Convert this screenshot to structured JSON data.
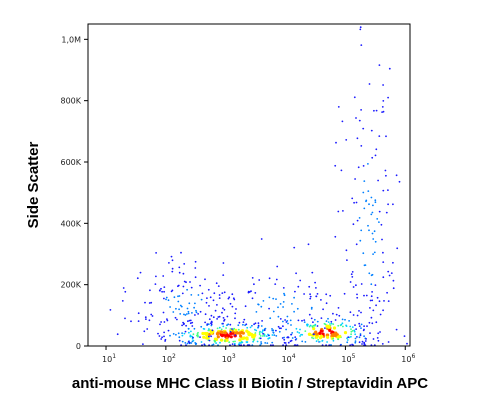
{
  "chart_data": {
    "type": "scatter",
    "title": "",
    "xlabel": "anti-mouse MHC Class II Biotin / Streptavidin APC",
    "ylabel": "Side Scatter",
    "xscale": "log",
    "xlim": [
      5,
      1200000
    ],
    "ylim": [
      0,
      1050000
    ],
    "x_ticks": [
      {
        "base": "10",
        "exp": "1",
        "value": 10
      },
      {
        "base": "10",
        "exp": "2",
        "value": 100
      },
      {
        "base": "10",
        "exp": "3",
        "value": 1000
      },
      {
        "base": "10",
        "exp": "4",
        "value": 10000
      },
      {
        "base": "10",
        "exp": "5",
        "value": 100000
      },
      {
        "base": "10",
        "exp": "6",
        "value": 1000000
      }
    ],
    "y_ticks": [
      {
        "label": "0",
        "value": 0
      },
      {
        "label": "200K",
        "value": 200000
      },
      {
        "label": "400K",
        "value": 400000
      },
      {
        "label": "600K",
        "value": 600000
      },
      {
        "label": "800K",
        "value": 800000
      },
      {
        "label": "1,0M",
        "value": 1000000
      }
    ],
    "grid": false,
    "legend": "none",
    "colormap": [
      "#1a1aff",
      "#0080ff",
      "#00d0ff",
      "#40ff80",
      "#ffff00",
      "#ff8000",
      "#ff0000"
    ],
    "populations": [
      {
        "x_center": 1100,
        "x_spread": 0.55,
        "y_center": 35000,
        "y_spread": 22000,
        "points": 260,
        "density": "high"
      },
      {
        "x_center": 50000,
        "x_spread": 0.4,
        "y_center": 45000,
        "y_spread": 25000,
        "points": 180,
        "density": "high"
      },
      {
        "x_center": 200,
        "x_spread": 0.45,
        "y_center": 140000,
        "y_spread": 70000,
        "points": 140,
        "density": "low"
      },
      {
        "x_center": 8000,
        "x_spread": 0.8,
        "y_center": 120000,
        "y_spread": 80000,
        "points": 130,
        "density": "low"
      },
      {
        "x_center": 250000,
        "x_spread": 0.25,
        "y_center": 400000,
        "y_spread": 300000,
        "points": 150,
        "density": "low"
      }
    ]
  }
}
